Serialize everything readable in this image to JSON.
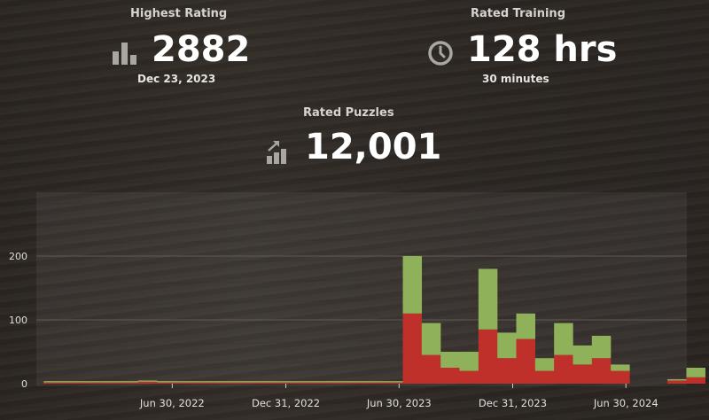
{
  "stats": {
    "highest_rating": {
      "label": "Highest Rating",
      "value": "2882",
      "sub": "Dec 23, 2023",
      "icon": "bar-chart-icon"
    },
    "rated_training": {
      "label": "Rated Training",
      "value": "128 hrs",
      "sub": "30 minutes",
      "icon": "clock-icon"
    },
    "rated_puzzles": {
      "label": "Rated Puzzles",
      "value": "12,001",
      "icon": "trend-up-chart-icon"
    }
  },
  "colors": {
    "icon": "#a9a5a1",
    "green": "#8fb15a",
    "red": "#c0302a",
    "grid": "#5f5a55"
  },
  "chart_data": {
    "type": "bar",
    "stacked": true,
    "ylim": [
      0,
      240
    ],
    "y_ticks": [
      0,
      100,
      200
    ],
    "x_tick_labels": [
      "Jun 30, 2022",
      "Dec 31, 2022",
      "Jun 30, 2023",
      "Dec 31, 2023",
      "Jun 30, 2024"
    ],
    "x": [
      "2022-01",
      "2022-02",
      "2022-03",
      "2022-04",
      "2022-05",
      "2022-06",
      "2022-07",
      "2022-08",
      "2022-09",
      "2022-10",
      "2022-11",
      "2022-12",
      "2023-01",
      "2023-02",
      "2023-03",
      "2023-04",
      "2023-05",
      "2023-06",
      "2023-07",
      "2023-08",
      "2023-09",
      "2023-10",
      "2023-11",
      "2023-12",
      "2024-01",
      "2024-02",
      "2024-03",
      "2024-04",
      "2024-05",
      "2024-06",
      "2024-07",
      "2024-08",
      "2024-09",
      "2024-10",
      "2024-11"
    ],
    "series": [
      {
        "color": "red",
        "values": [
          2,
          2,
          2,
          2,
          2,
          3,
          2,
          2,
          2,
          2,
          2,
          2,
          2,
          2,
          2,
          2,
          2,
          2,
          2,
          110,
          45,
          25,
          20,
          85,
          40,
          70,
          20,
          45,
          30,
          40,
          20,
          0,
          0,
          5,
          10
        ]
      },
      {
        "color": "green",
        "values": [
          2,
          2,
          2,
          2,
          2,
          2,
          2,
          2,
          2,
          2,
          2,
          2,
          2,
          2,
          2,
          2,
          2,
          2,
          2,
          90,
          50,
          25,
          30,
          95,
          40,
          40,
          20,
          50,
          30,
          35,
          10,
          0,
          0,
          2,
          15
        ]
      }
    ]
  }
}
